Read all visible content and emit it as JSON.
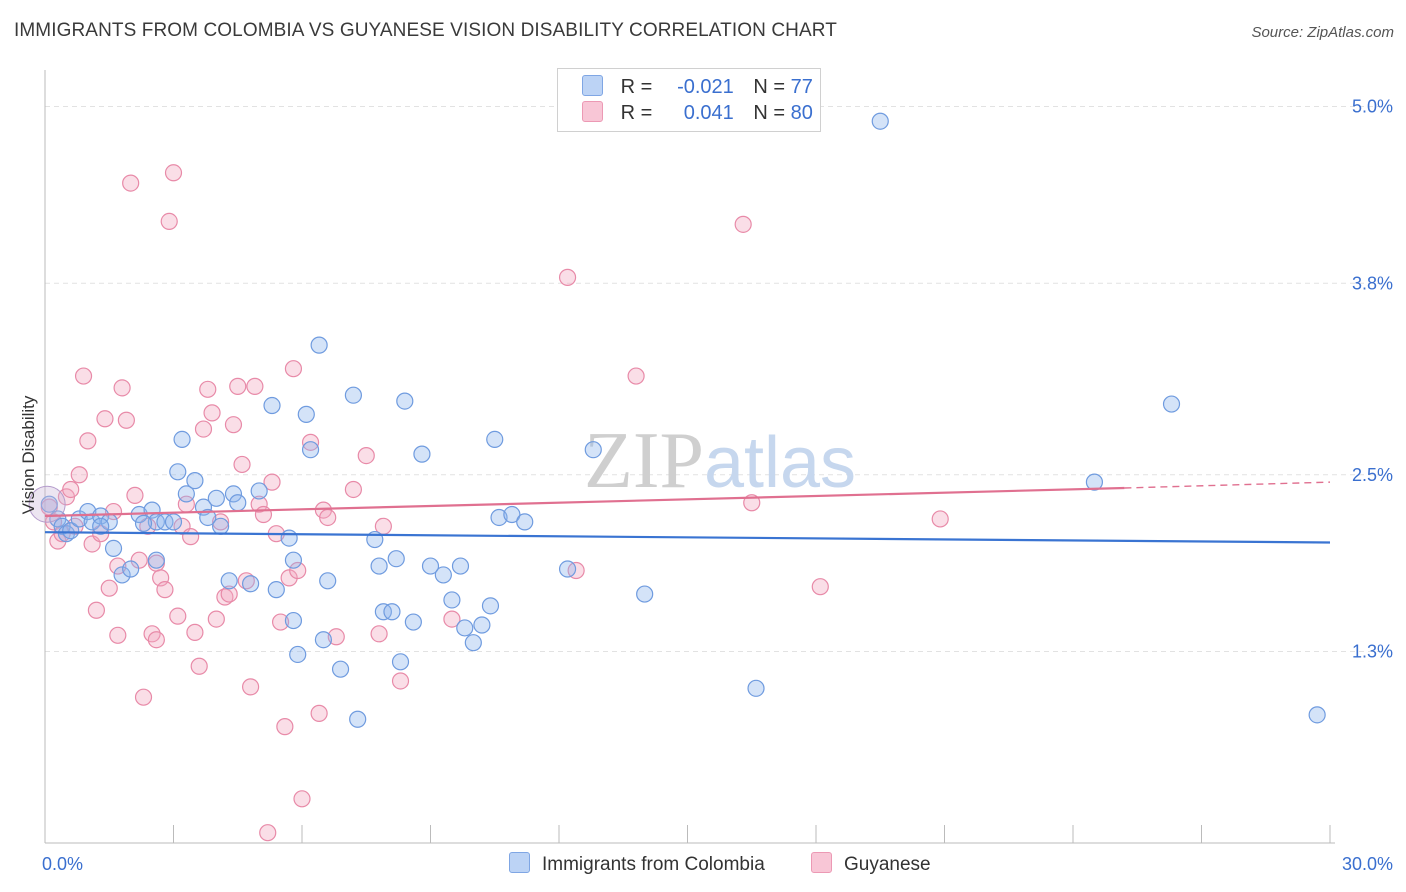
{
  "chart_data": {
    "type": "scatter",
    "title": "IMMIGRANTS FROM COLOMBIA VS GUYANESE VISION DISABILITY CORRELATION CHART",
    "source": "Source: ZipAtlas.com",
    "ylabel": "Vision Disability",
    "xlabel": "",
    "xlim": [
      0,
      30
    ],
    "ylim": [
      0,
      5.2
    ],
    "x_tick_labels": [
      "0.0%",
      "30.0%"
    ],
    "y_ticks": [
      1.3,
      2.5,
      3.8,
      5.0
    ],
    "y_tick_labels": [
      "1.3%",
      "2.5%",
      "3.8%",
      "5.0%"
    ],
    "grid": true,
    "watermark": "ZIPatlas",
    "legend": {
      "position": "top-center",
      "rows": [
        {
          "r_label": "R =",
          "r_value": "-0.021",
          "n_label": "N =",
          "n_value": "77"
        },
        {
          "r_label": "R =",
          "r_value": "0.041",
          "n_label": "N =",
          "n_value": "80"
        }
      ]
    },
    "series": [
      {
        "name": "Immigrants from Colombia",
        "color": "#8fb5ec",
        "edge": "#6f9bdf",
        "trend_color": "#3a74d2",
        "trend": {
          "x0": 0,
          "y0": 2.11,
          "x1": 30,
          "y1": 2.04
        },
        "points": [
          [
            0.1,
            2.3
          ],
          [
            0.3,
            2.2
          ],
          [
            0.4,
            2.15
          ],
          [
            0.5,
            2.1
          ],
          [
            0.6,
            2.12
          ],
          [
            0.8,
            2.2
          ],
          [
            1.0,
            2.25
          ],
          [
            1.1,
            2.18
          ],
          [
            1.3,
            2.22
          ],
          [
            1.5,
            2.18
          ],
          [
            1.6,
            2.0
          ],
          [
            1.8,
            1.82
          ],
          [
            2.0,
            1.86
          ],
          [
            2.2,
            2.23
          ],
          [
            2.5,
            2.26
          ],
          [
            2.6,
            2.18
          ],
          [
            2.6,
            1.92
          ],
          [
            2.8,
            2.18
          ],
          [
            3.0,
            2.18
          ],
          [
            3.1,
            2.52
          ],
          [
            3.2,
            2.74
          ],
          [
            3.3,
            2.37
          ],
          [
            3.5,
            2.46
          ],
          [
            3.7,
            2.28
          ],
          [
            3.8,
            2.21
          ],
          [
            4.0,
            2.34
          ],
          [
            4.1,
            2.15
          ],
          [
            4.3,
            1.78
          ],
          [
            4.4,
            2.37
          ],
          [
            4.5,
            2.31
          ],
          [
            4.8,
            1.76
          ],
          [
            5.0,
            2.39
          ],
          [
            5.3,
            2.97
          ],
          [
            5.4,
            1.72
          ],
          [
            5.7,
            2.07
          ],
          [
            5.8,
            1.92
          ],
          [
            5.8,
            1.51
          ],
          [
            5.9,
            1.28
          ],
          [
            6.1,
            2.91
          ],
          [
            6.2,
            2.67
          ],
          [
            6.4,
            3.38
          ],
          [
            6.5,
            1.38
          ],
          [
            6.6,
            1.78
          ],
          [
            6.9,
            1.18
          ],
          [
            7.2,
            3.04
          ],
          [
            7.3,
            0.84
          ],
          [
            7.7,
            2.06
          ],
          [
            7.8,
            1.88
          ],
          [
            7.9,
            1.57
          ],
          [
            8.1,
            1.57
          ],
          [
            8.2,
            1.93
          ],
          [
            8.3,
            1.23
          ],
          [
            8.4,
            3.0
          ],
          [
            8.6,
            1.5
          ],
          [
            8.8,
            2.64
          ],
          [
            9.0,
            1.88
          ],
          [
            9.3,
            1.82
          ],
          [
            9.5,
            1.65
          ],
          [
            9.7,
            1.88
          ],
          [
            9.8,
            1.46
          ],
          [
            10.0,
            1.36
          ],
          [
            10.2,
            1.48
          ],
          [
            10.4,
            1.61
          ],
          [
            10.5,
            2.74
          ],
          [
            10.6,
            2.21
          ],
          [
            10.9,
            2.23
          ],
          [
            11.2,
            2.18
          ],
          [
            12.2,
            1.86
          ],
          [
            12.8,
            2.67
          ],
          [
            14.0,
            1.69
          ],
          [
            16.6,
            1.05
          ],
          [
            19.5,
            4.9
          ],
          [
            24.5,
            2.45
          ],
          [
            26.3,
            2.98
          ],
          [
            29.7,
            0.87
          ],
          [
            1.3,
            2.15
          ],
          [
            2.3,
            2.17
          ]
        ]
      },
      {
        "name": "Guyanese",
        "color": "#f2a7bf",
        "edge": "#e88aa8",
        "trend_color": "#e07090",
        "trend": {
          "x0": 0,
          "y0": 2.22,
          "x1": 25.2,
          "y1": 2.41
        },
        "trend_ext": {
          "x0": 25.2,
          "y0": 2.41,
          "x1": 30,
          "y1": 2.45
        },
        "points": [
          [
            0.1,
            2.28
          ],
          [
            0.2,
            2.18
          ],
          [
            0.3,
            2.05
          ],
          [
            0.4,
            2.1
          ],
          [
            0.5,
            2.35
          ],
          [
            0.6,
            2.4
          ],
          [
            0.7,
            2.15
          ],
          [
            0.8,
            2.5
          ],
          [
            0.9,
            3.17
          ],
          [
            1.0,
            2.73
          ],
          [
            1.1,
            2.03
          ],
          [
            1.2,
            1.58
          ],
          [
            1.3,
            2.1
          ],
          [
            1.4,
            2.88
          ],
          [
            1.5,
            1.73
          ],
          [
            1.6,
            2.25
          ],
          [
            1.7,
            1.88
          ],
          [
            1.8,
            3.09
          ],
          [
            1.9,
            2.87
          ],
          [
            2.0,
            4.48
          ],
          [
            2.1,
            2.36
          ],
          [
            2.2,
            1.92
          ],
          [
            2.3,
            0.99
          ],
          [
            2.4,
            2.15
          ],
          [
            2.5,
            1.42
          ],
          [
            2.6,
            1.9
          ],
          [
            2.7,
            1.8
          ],
          [
            2.8,
            1.72
          ],
          [
            2.9,
            4.22
          ],
          [
            3.0,
            4.55
          ],
          [
            3.1,
            1.54
          ],
          [
            3.2,
            2.15
          ],
          [
            3.3,
            2.3
          ],
          [
            3.4,
            2.08
          ],
          [
            3.5,
            1.43
          ],
          [
            3.6,
            1.2
          ],
          [
            3.7,
            2.81
          ],
          [
            3.8,
            3.08
          ],
          [
            3.9,
            2.92
          ],
          [
            4.0,
            1.52
          ],
          [
            4.1,
            2.18
          ],
          [
            4.2,
            1.67
          ],
          [
            4.3,
            1.69
          ],
          [
            4.4,
            2.84
          ],
          [
            4.5,
            3.1
          ],
          [
            4.6,
            2.57
          ],
          [
            4.7,
            1.78
          ],
          [
            4.8,
            1.06
          ],
          [
            4.9,
            3.1
          ],
          [
            5.0,
            2.3
          ],
          [
            5.1,
            2.23
          ],
          [
            5.2,
            0.07
          ],
          [
            5.3,
            2.45
          ],
          [
            5.4,
            2.1
          ],
          [
            5.5,
            1.5
          ],
          [
            5.6,
            0.79
          ],
          [
            5.7,
            1.8
          ],
          [
            5.8,
            3.22
          ],
          [
            5.9,
            1.85
          ],
          [
            6.0,
            0.3
          ],
          [
            6.2,
            2.72
          ],
          [
            6.4,
            0.88
          ],
          [
            6.5,
            2.26
          ],
          [
            6.6,
            2.21
          ],
          [
            6.8,
            1.4
          ],
          [
            7.2,
            2.4
          ],
          [
            7.5,
            2.63
          ],
          [
            7.8,
            1.42
          ],
          [
            7.9,
            2.15
          ],
          [
            8.3,
            1.1
          ],
          [
            9.5,
            1.52
          ],
          [
            12.2,
            3.84
          ],
          [
            12.4,
            1.85
          ],
          [
            13.8,
            3.17
          ],
          [
            16.3,
            4.2
          ],
          [
            16.5,
            2.31
          ],
          [
            18.1,
            1.74
          ],
          [
            20.9,
            2.2
          ],
          [
            1.7,
            1.41
          ],
          [
            2.6,
            1.38
          ]
        ]
      }
    ]
  }
}
